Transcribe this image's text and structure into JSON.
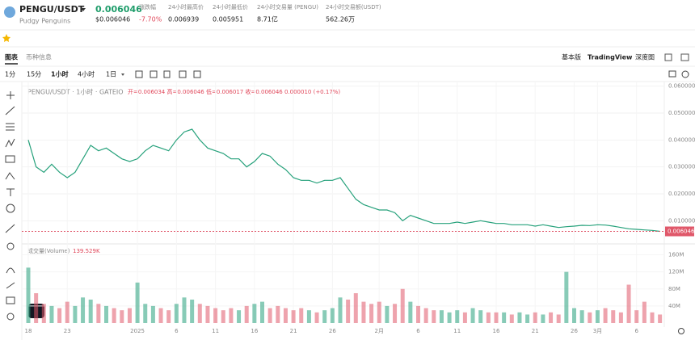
{
  "header": {
    "pair": "PENGU/USDT",
    "price": "0.006046",
    "name": "Pudgy Penguins",
    "price_usd": "$0.006046",
    "stats": [
      {
        "label": "涨跌幅",
        "value": "-7.70%"
      },
      {
        "label": "24小时最高价",
        "value": "0.006939"
      },
      {
        "label": "24小时最低价",
        "value": "0.005951"
      },
      {
        "label": "24小时交易量 (PENGU)",
        "value": "8.71亿"
      },
      {
        "label": "24小时交易额(USDT)",
        "value": "562.26万"
      }
    ]
  },
  "tabs": [
    "图表",
    "币种信息"
  ],
  "views": [
    "基本版",
    "TradingView",
    "深度图"
  ],
  "intervals": [
    "1分",
    "15分",
    "1小时",
    "4小时",
    "1日"
  ],
  "chart_data": {
    "type": "line",
    "title": "PENGU/USDT · 1小时 · GATEIO",
    "ohlc_legend": "开=0.006034 高=0.006046 低=0.006017 收=0.006046 0.000010 (+0.17%)",
    "volume_title": "成交量(Volume)",
    "volume_last": "139.529K",
    "categories": [
      "18",
      null,
      null,
      null,
      null,
      "23",
      null,
      null,
      null,
      null,
      null,
      null,
      null,
      null,
      "2025",
      null,
      null,
      null,
      null,
      "6",
      null,
      null,
      null,
      null,
      "11",
      null,
      null,
      null,
      null,
      "16",
      null,
      null,
      null,
      null,
      "21",
      null,
      null,
      null,
      null,
      "26",
      null,
      null,
      null,
      null,
      null,
      "2月",
      null,
      null,
      null,
      null,
      "6",
      null,
      null,
      null,
      null,
      "11",
      null,
      null,
      null,
      null,
      "16",
      null,
      null,
      null,
      null,
      "21",
      null,
      null,
      null,
      null,
      "26",
      null,
      null,
      "3月",
      null,
      null,
      null,
      null,
      "6",
      null,
      null,
      null
    ],
    "series": [
      {
        "name": "PENGU/USDT",
        "color": "#26a17b",
        "values": [
          0.04,
          0.03,
          0.028,
          0.031,
          0.028,
          0.026,
          0.028,
          0.033,
          0.038,
          0.036,
          0.037,
          0.035,
          0.033,
          0.032,
          0.033,
          0.036,
          0.038,
          0.037,
          0.036,
          0.04,
          0.043,
          0.044,
          0.04,
          0.037,
          0.036,
          0.035,
          0.033,
          0.033,
          0.03,
          0.032,
          0.035,
          0.034,
          0.031,
          0.029,
          0.026,
          0.025,
          0.025,
          0.024,
          0.025,
          0.025,
          0.026,
          0.022,
          0.018,
          0.016,
          0.015,
          0.014,
          0.014,
          0.013,
          0.01,
          0.012,
          0.011,
          0.01,
          0.009,
          0.009,
          0.009,
          0.0095,
          0.009,
          0.0095,
          0.01,
          0.0095,
          0.009,
          0.009,
          0.0085,
          0.0085,
          0.0085,
          0.008,
          0.0085,
          0.008,
          0.0075,
          0.0078,
          0.008,
          0.0083,
          0.0082,
          0.0085,
          0.0084,
          0.008,
          0.0075,
          0.007,
          0.0068,
          0.0066,
          0.0064,
          0.006046
        ]
      },
      {
        "name": "成交量(Volume)",
        "type": "bar",
        "axis": "y2",
        "values": [
          130000000,
          70000000,
          45000000,
          40000000,
          35000000,
          50000000,
          40000000,
          60000000,
          55000000,
          45000000,
          40000000,
          35000000,
          30000000,
          35000000,
          95000000,
          45000000,
          40000000,
          35000000,
          30000000,
          45000000,
          60000000,
          55000000,
          45000000,
          40000000,
          35000000,
          30000000,
          35000000,
          30000000,
          40000000,
          45000000,
          50000000,
          35000000,
          40000000,
          35000000,
          30000000,
          35000000,
          30000000,
          25000000,
          30000000,
          35000000,
          60000000,
          55000000,
          70000000,
          50000000,
          45000000,
          50000000,
          40000000,
          45000000,
          80000000,
          50000000,
          40000000,
          35000000,
          30000000,
          30000000,
          25000000,
          30000000,
          25000000,
          35000000,
          30000000,
          25000000,
          25000000,
          25000000,
          20000000,
          25000000,
          20000000,
          25000000,
          20000000,
          25000000,
          20000000,
          120000000,
          35000000,
          30000000,
          25000000,
          30000000,
          35000000,
          30000000,
          25000000,
          90000000,
          30000000,
          50000000,
          25000000,
          20000000
        ]
      }
    ],
    "up_color": "#26a17b",
    "down_color": "#e0586a",
    "last_price": 0.006046,
    "ylim": [
      0.002,
      0.062
    ],
    "yticks": [
      {
        "value": 0.06,
        "label": "0.060000"
      },
      {
        "value": 0.05,
        "label": "0.050000"
      },
      {
        "value": 0.04,
        "label": "0.040000"
      },
      {
        "value": 0.03,
        "label": "0.030000"
      },
      {
        "value": 0.02,
        "label": "0.020000"
      },
      {
        "value": 0.01,
        "label": "0.010000"
      }
    ],
    "y2lim": [
      0,
      180000000
    ],
    "y2ticks": [
      {
        "value": 160000000,
        "label": "160M"
      },
      {
        "value": 120000000,
        "label": "120M"
      },
      {
        "value": 80000000,
        "label": "80M"
      },
      {
        "value": 40000000,
        "label": "40M"
      }
    ],
    "grid": true
  }
}
